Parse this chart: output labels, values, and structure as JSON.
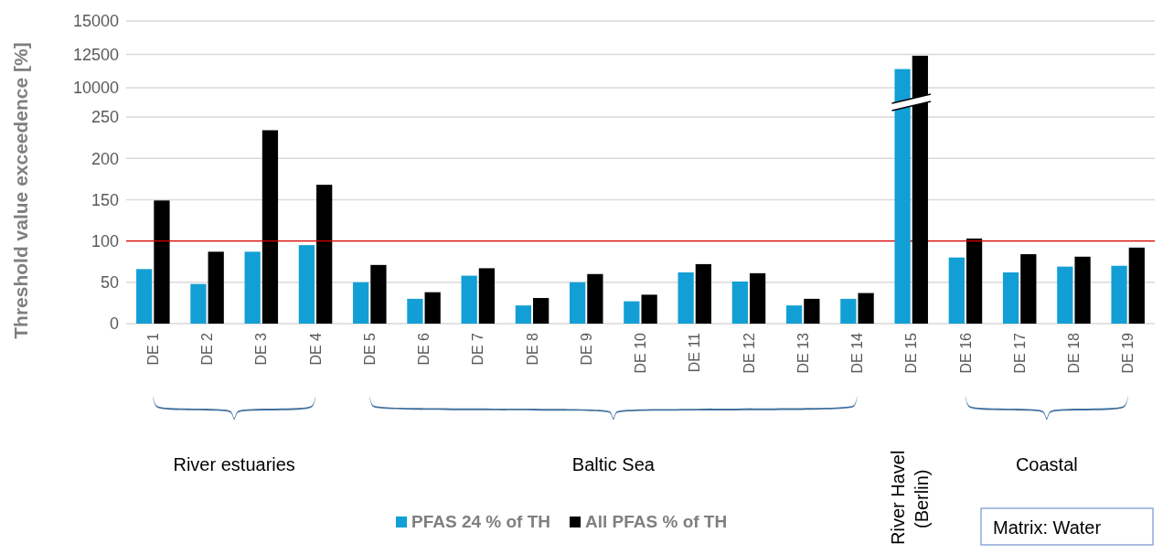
{
  "chart_data": [
    {
      "type": "bar",
      "tick_labels": "y",
      "categories": [
        null,
        null,
        null,
        null,
        null,
        null,
        null,
        null,
        null,
        null,
        null,
        null,
        null,
        null,
        null,
        null,
        null,
        null,
        null
      ],
      "series": [
        {
          "color": "#129fd6",
          "values": [
            null,
            null,
            null,
            null,
            null,
            null,
            null,
            null,
            null,
            null,
            null,
            null,
            null,
            null,
            11400,
            null,
            null,
            null,
            null
          ]
        },
        {
          "color": "#000000",
          "values": [
            null,
            null,
            null,
            null,
            null,
            null,
            null,
            null,
            null,
            null,
            null,
            null,
            null,
            null,
            12400,
            null,
            null,
            null,
            null
          ]
        }
      ],
      "ylim": [
        10000,
        15000
      ],
      "yticks": [
        10000,
        12500,
        15000
      ],
      "grid": "y"
    },
    {
      "type": "bar",
      "ylabel": "Threshold value exceedence [%]",
      "categories": [
        "DE 1",
        "DE 2",
        "DE 3",
        "DE 4",
        "DE 5",
        "DE 6",
        "DE 7",
        "DE 8",
        "DE 9",
        "DE 10",
        "DE 11",
        "DE 12",
        "DE 13",
        "DE 14",
        "DE 15",
        "DE 16",
        "DE 17",
        "DE 18",
        "DE 19"
      ],
      "series": [
        {
          "name": "PFAS 24 % of TH",
          "color": "#129fd6",
          "values": [
            66,
            48,
            87,
            95,
            50,
            30,
            58,
            22,
            50,
            27,
            62,
            51,
            22,
            30,
            null,
            80,
            62,
            69,
            70
          ]
        },
        {
          "name": "All PFAS % of TH",
          "color": "#000000",
          "values": [
            149,
            87,
            234,
            168,
            71,
            38,
            67,
            31,
            60,
            35,
            72,
            61,
            30,
            37,
            null,
            103,
            84,
            81,
            92
          ]
        }
      ],
      "ylim": [
        0,
        250
      ],
      "yticks": [
        0,
        50,
        100,
        150,
        200,
        250
      ],
      "grid": "y",
      "legend": "bottom",
      "ref_lines": [
        {
          "axis": "y",
          "value": 100,
          "color": "#e00000"
        }
      ],
      "annotations": [
        "River estuaries",
        "Baltic Sea",
        "River Havel (Berlin)",
        "Coastal",
        "Matrix: Water"
      ]
    }
  ]
}
